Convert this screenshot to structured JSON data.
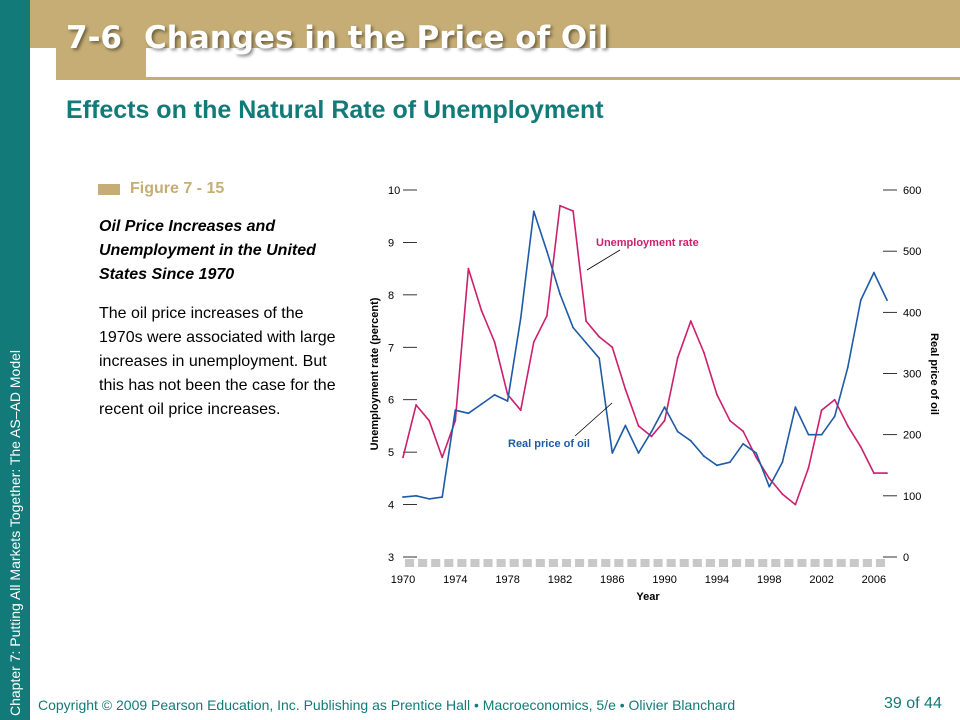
{
  "slide": {
    "title_number": "7-6",
    "title_text": "Changes in the Price of Oil",
    "subtitle": "Effects on the Natural Rate of Unemployment",
    "side_label": "Chapter 7:  Putting All Markets Together: The AS–AD Model",
    "footer": "Copyright © 2009 Pearson Education, Inc. Publishing as Prentice Hall • Macroeconomics, 5/e • Olivier Blanchard",
    "page_current": "39",
    "page_of": "of 44"
  },
  "figure": {
    "label": "Figure 7 - 15",
    "heading": "Oil Price Increases and Unemployment in the United States Since 1970",
    "description": "The oil price increases of the 1970s were associated with large increases in unemployment. But this has not been the case for the recent oil price increases."
  },
  "colors": {
    "teal": "#127a78",
    "tan": "#c6ad75",
    "unemployment": "#cc1f6e",
    "oil": "#1f5aa6",
    "band": "#c8c8c8"
  },
  "chart_data": {
    "type": "line",
    "xlabel": "Year",
    "ylabel_left": "Unemployment rate (percent)",
    "ylabel_right": "Real price of oil",
    "xlim": [
      1970,
      2007
    ],
    "ylim_left": [
      3,
      10
    ],
    "ylim_right": [
      0,
      600
    ],
    "x_ticks": [
      1970,
      1974,
      1978,
      1982,
      1986,
      1990,
      1994,
      1998,
      2002,
      2006
    ],
    "y_ticks_left": [
      3,
      4,
      5,
      6,
      7,
      8,
      9,
      10
    ],
    "y_ticks_right": [
      0,
      100,
      200,
      300,
      400,
      500,
      600
    ],
    "grid": false,
    "x": [
      1970,
      1971,
      1972,
      1973,
      1974,
      1975,
      1976,
      1977,
      1978,
      1979,
      1980,
      1981,
      1982,
      1983,
      1984,
      1985,
      1986,
      1987,
      1988,
      1989,
      1990,
      1991,
      1992,
      1993,
      1994,
      1995,
      1996,
      1997,
      1998,
      1999,
      2000,
      2001,
      2002,
      2003,
      2004,
      2005,
      2006,
      2007
    ],
    "series": [
      {
        "name": "Unemployment rate",
        "axis": "left",
        "values": [
          4.9,
          5.9,
          5.6,
          4.9,
          5.6,
          8.5,
          7.7,
          7.1,
          6.1,
          5.8,
          7.1,
          7.6,
          9.7,
          9.6,
          7.5,
          7.2,
          7.0,
          6.2,
          5.5,
          5.3,
          5.6,
          6.8,
          7.5,
          6.9,
          6.1,
          5.6,
          5.4,
          4.9,
          4.5,
          4.2,
          4.0,
          4.7,
          5.8,
          6.0,
          5.5,
          5.1,
          4.6,
          4.6
        ]
      },
      {
        "name": "Real price of oil",
        "axis": "right",
        "values": [
          98,
          100,
          95,
          98,
          240,
          235,
          250,
          265,
          255,
          390,
          565,
          500,
          430,
          375,
          350,
          325,
          170,
          215,
          170,
          205,
          245,
          205,
          190,
          165,
          150,
          155,
          185,
          170,
          115,
          155,
          245,
          200,
          200,
          230,
          310,
          420,
          465,
          420
        ]
      }
    ]
  }
}
